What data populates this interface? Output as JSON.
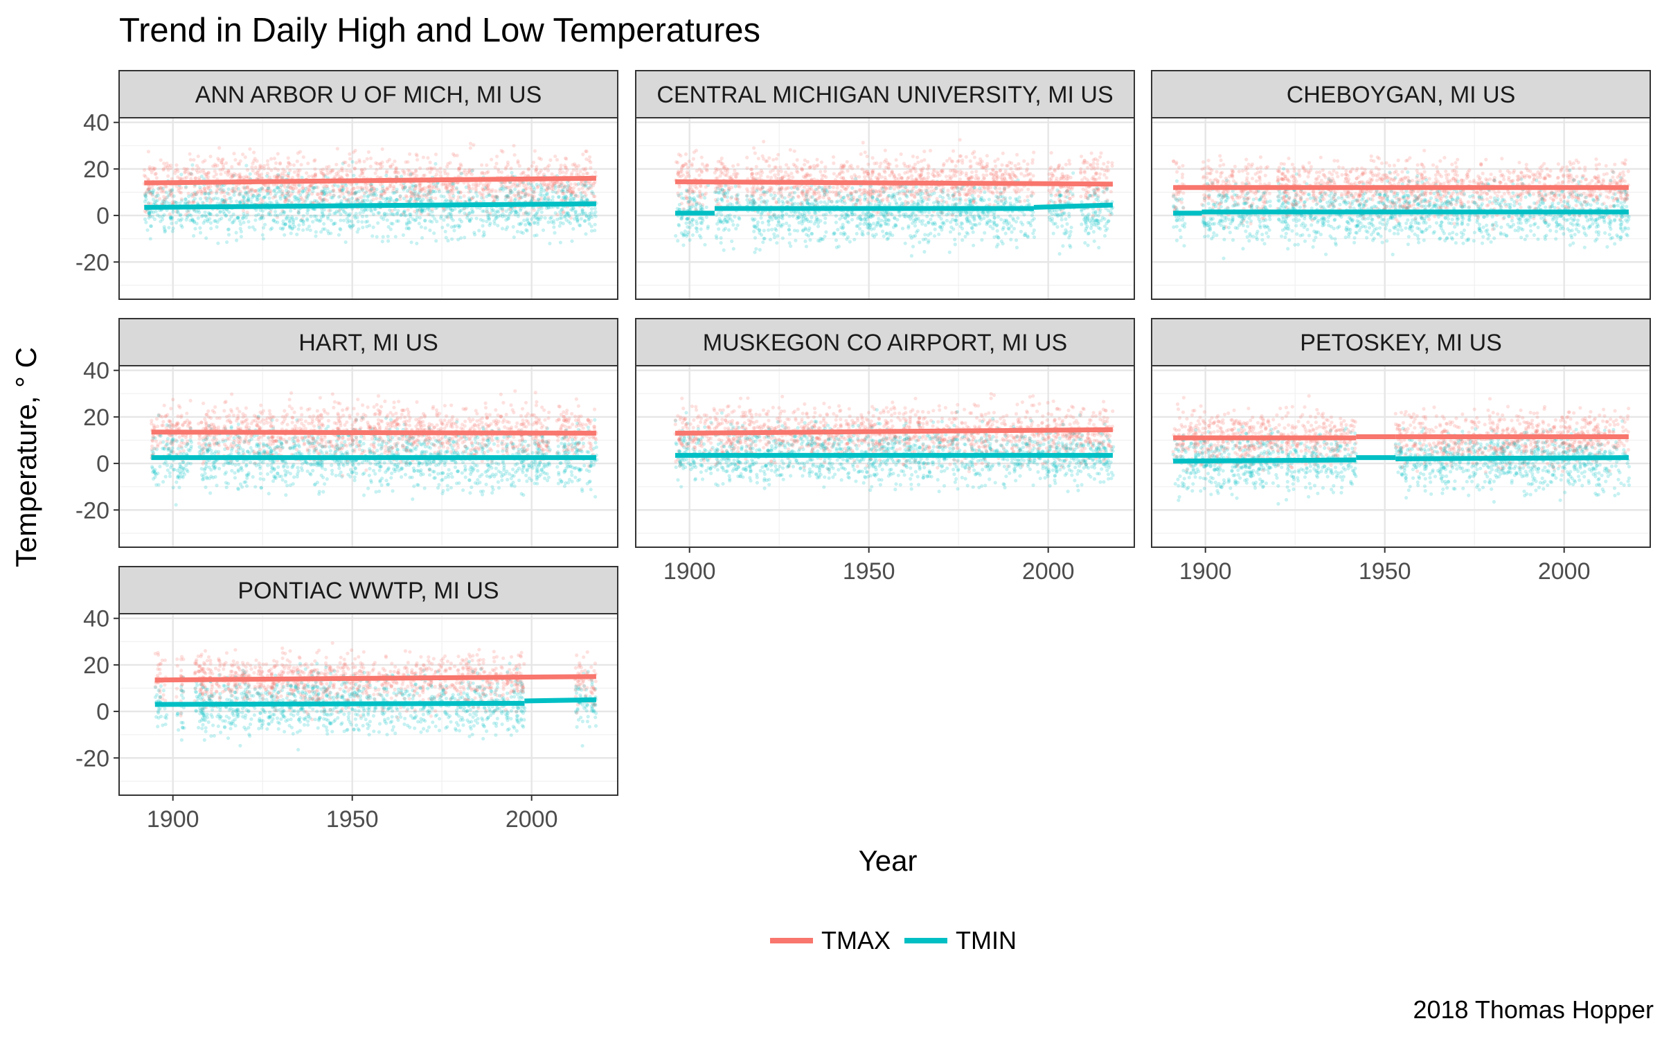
{
  "chart_data": {
    "type": "scatter",
    "title": "Trend in Daily High and Low Temperatures",
    "xlabel": "Year",
    "ylabel": "Temperature, ° C",
    "caption": "2018 Thomas Hopper",
    "xlim": [
      1885,
      2024
    ],
    "ylim": [
      -36,
      42
    ],
    "x_ticks": [
      1900,
      1950,
      2000
    ],
    "y_ticks": [
      40,
      20,
      0,
      -20
    ],
    "grid": true,
    "legend_position": "bottom",
    "legend": [
      {
        "name": "TMAX",
        "color": "#F8766D"
      },
      {
        "name": "TMIN",
        "color": "#00BFC4"
      }
    ],
    "facets": [
      {
        "station": "ANN ARBOR U OF MICH, MI US",
        "active": [
          [
            1892,
            2018
          ]
        ],
        "trend": {
          "TMAX": [
            [
              1892,
              14.0,
              2018,
              16.0
            ]
          ],
          "TMIN": [
            [
              1892,
              3.5,
              2018,
              5.0
            ]
          ]
        }
      },
      {
        "station": "CENTRAL MICHIGAN UNIVERSITY, MI US",
        "active": [
          [
            1896,
            1905
          ],
          [
            1907,
            1914
          ],
          [
            1916,
            1996
          ],
          [
            2000,
            2007
          ],
          [
            2009,
            2018
          ]
        ],
        "trend": {
          "TMAX": [
            [
              1896,
              14.5,
              2018,
              13.5
            ]
          ],
          "TMIN": [
            [
              1896,
              1.0,
              1907,
              1.0
            ],
            [
              1907,
              3.0,
              1996,
              3.0
            ],
            [
              1996,
              3.5,
              2018,
              4.5
            ]
          ]
        }
      },
      {
        "station": "CHEBOYGAN, MI US",
        "active": [
          [
            1891,
            1894
          ],
          [
            1899,
            1918
          ],
          [
            1920,
            2018
          ]
        ],
        "trend": {
          "TMAX": [
            [
              1891,
              12.0,
              2018,
              12.0
            ]
          ],
          "TMIN": [
            [
              1891,
              1.0,
              1899,
              1.0
            ],
            [
              1899,
              1.5,
              2018,
              1.5
            ]
          ]
        }
      },
      {
        "station": "HART, MI US",
        "active": [
          [
            1894,
            1905
          ],
          [
            1907,
            2005
          ],
          [
            2007,
            2018
          ]
        ],
        "trend": {
          "TMAX": [
            [
              1894,
              13.5,
              2018,
              13.0
            ]
          ],
          "TMIN": [
            [
              1894,
              2.5,
              2018,
              2.5
            ]
          ]
        }
      },
      {
        "station": "MUSKEGON CO AIRPORT, MI US",
        "active": [
          [
            1896,
            2018
          ]
        ],
        "trend": {
          "TMAX": [
            [
              1896,
              13.0,
              2018,
              14.5
            ]
          ],
          "TMIN": [
            [
              1896,
              3.5,
              2018,
              3.5
            ]
          ]
        }
      },
      {
        "station": "PETOSKEY, MI US",
        "active": [
          [
            1891,
            1942
          ],
          [
            1953,
            2018
          ]
        ],
        "trend": {
          "TMAX": [
            [
              1891,
              11.0,
              1942,
              11.0
            ],
            [
              1942,
              11.5,
              1953,
              11.5
            ],
            [
              1953,
              11.5,
              2018,
              11.5
            ]
          ],
          "TMIN": [
            [
              1891,
              1.0,
              1942,
              1.5
            ],
            [
              1942,
              2.5,
              1953,
              2.5
            ],
            [
              1953,
              2.0,
              2018,
              2.5
            ]
          ]
        }
      },
      {
        "station": "PONTIAC WWTP, MI US",
        "active": [
          [
            1895,
            1898
          ],
          [
            1901,
            1903
          ],
          [
            1906,
            1998
          ],
          [
            2012,
            2018
          ]
        ],
        "trend": {
          "TMAX": [
            [
              1895,
              13.5,
              2018,
              15.0
            ]
          ],
          "TMIN": [
            [
              1895,
              3.0,
              1998,
              3.5
            ],
            [
              1998,
              4.5,
              2018,
              5.0
            ]
          ]
        }
      }
    ]
  }
}
